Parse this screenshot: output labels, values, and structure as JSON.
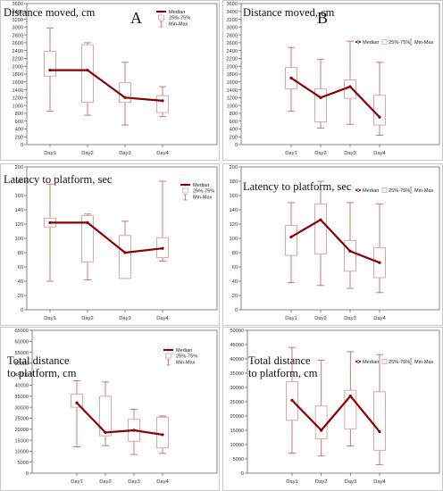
{
  "chart_data": [
    {
      "type": "boxplot",
      "panel_label": "A",
      "title": "Distance moved, cm",
      "categories": [
        "Day1",
        "Day2",
        "Day3",
        "Day4"
      ],
      "ylim": [
        0,
        3600
      ],
      "yticks": [
        0,
        200,
        400,
        600,
        800,
        1000,
        1200,
        1400,
        1600,
        1800,
        2000,
        2200,
        2400,
        2600,
        2800,
        3000,
        3200,
        3400,
        3600
      ],
      "legend": {
        "position": "top-right",
        "median": "Median",
        "iqr": "25%-75%",
        "range": "Min-Max"
      },
      "median": [
        1900,
        1900,
        1200,
        1120
      ],
      "q1": [
        1750,
        1080,
        1080,
        820
      ],
      "q3": [
        2380,
        2550,
        1580,
        1250
      ],
      "min": [
        850,
        750,
        500,
        720
      ],
      "max": [
        2980,
        2600,
        2100,
        1480
      ],
      "colors": {
        "median": "#8b0000",
        "box": "#d9a8a8",
        "whisker": "#c26a6a"
      }
    },
    {
      "type": "boxplot",
      "panel_label": "B",
      "title": "Distance moved, cm",
      "categories": [
        "Day1",
        "Day2",
        "Day3",
        "Day4"
      ],
      "ylim": [
        0,
        3600
      ],
      "yticks": [
        0,
        200,
        400,
        600,
        800,
        1000,
        1200,
        1400,
        1600,
        1800,
        2000,
        2200,
        2400,
        2600,
        2800,
        3000,
        3200,
        3400,
        3600
      ],
      "legend": {
        "position": "top-right",
        "median": "Median",
        "iqr": "25%-75%",
        "range": "Min-Max"
      },
      "median": [
        1700,
        1200,
        1480,
        700
      ],
      "q1": [
        1420,
        580,
        1180,
        500
      ],
      "q3": [
        1970,
        1420,
        1650,
        1260
      ],
      "min": [
        850,
        420,
        520,
        240
      ],
      "max": [
        2480,
        2180,
        2640,
        2100
      ],
      "colors": {
        "median": "#8b0000",
        "box": "#d9a8a8",
        "whisker": "#c26a6a"
      }
    },
    {
      "type": "boxplot",
      "title": "Latency to platform, sec",
      "categories": [
        "Day1",
        "Day2",
        "Day3",
        "Day4"
      ],
      "ylim": [
        0,
        200
      ],
      "yticks": [
        0,
        20,
        40,
        60,
        80,
        100,
        120,
        140,
        160,
        180,
        200
      ],
      "legend": {
        "position": "top-right",
        "median": "Median",
        "iqr": "25%-75%",
        "range": "Min-Max"
      },
      "median": [
        122,
        122,
        80,
        86
      ],
      "q1": [
        116,
        67,
        44,
        73
      ],
      "q3": [
        128,
        132,
        104,
        101
      ],
      "min": [
        40,
        42,
        44,
        68
      ],
      "max": [
        176,
        134,
        124,
        180
      ],
      "colors": {
        "median": "#8b0000",
        "box": "#d9a8a8",
        "whisker": "#c26a6a"
      }
    },
    {
      "type": "boxplot",
      "title": "Latency to platform, sec",
      "categories": [
        "Day1",
        "Day2",
        "Day3",
        "Day4"
      ],
      "ylim": [
        0,
        200
      ],
      "yticks": [
        0,
        20,
        40,
        60,
        80,
        100,
        120,
        140,
        160,
        180,
        200
      ],
      "legend": {
        "position": "top-right",
        "median": "Median",
        "iqr": "25%-75%",
        "range": "Min-Max"
      },
      "median": [
        102,
        126,
        82,
        66
      ],
      "q1": [
        76,
        78,
        54,
        45
      ],
      "q3": [
        118,
        148,
        97,
        87
      ],
      "min": [
        38,
        34,
        30,
        24
      ],
      "max": [
        150,
        180,
        150,
        148
      ],
      "colors": {
        "median": "#8b0000",
        "box": "#d9a8a8",
        "whisker": "#c26a6a"
      }
    },
    {
      "type": "boxplot",
      "title": "Total distance to platform, cm",
      "title_lines": [
        "Total distance",
        "to platform, cm"
      ],
      "categories": [
        "Day1",
        "Day2",
        "Day3",
        "Day4"
      ],
      "ylim": [
        0,
        65000
      ],
      "yticks": [
        0,
        5000,
        10000,
        15000,
        20000,
        25000,
        30000,
        35000,
        40000,
        45000,
        50000,
        55000,
        60000,
        65000
      ],
      "legend": {
        "position": "top-right",
        "median": "Median",
        "iqr": "25%-75%",
        "range": "Min-Max"
      },
      "median": [
        32000,
        18500,
        19500,
        17500
      ],
      "q1": [
        30000,
        17000,
        14500,
        11500
      ],
      "q3": [
        36000,
        35000,
        24500,
        25500
      ],
      "min": [
        12000,
        12500,
        8500,
        9000
      ],
      "max": [
        42000,
        41500,
        29000,
        26000
      ],
      "colors": {
        "median": "#8b0000",
        "box": "#d9a8a8",
        "whisker": "#c26a6a"
      }
    },
    {
      "type": "boxplot",
      "title": "Total distance to platform, cm",
      "title_lines": [
        "Total distance",
        "to platform, cm"
      ],
      "categories": [
        "Day1",
        "Day2",
        "Day3",
        "Day4"
      ],
      "ylim": [
        0,
        50000
      ],
      "yticks": [
        0,
        5000,
        10000,
        15000,
        20000,
        25000,
        30000,
        35000,
        40000,
        45000,
        50000
      ],
      "legend": {
        "position": "top-right",
        "median": "Median",
        "iqr": "25%-75%",
        "range": "Min-Max"
      },
      "median": [
        25500,
        15000,
        27000,
        14500
      ],
      "q1": [
        18500,
        12000,
        15500,
        8000
      ],
      "q3": [
        32000,
        23500,
        29000,
        28500
      ],
      "min": [
        7000,
        6000,
        9500,
        3000
      ],
      "max": [
        44000,
        39500,
        42500,
        41500
      ],
      "colors": {
        "median": "#8b0000",
        "box": "#d9a8a8",
        "whisker": "#c26a6a"
      }
    }
  ]
}
